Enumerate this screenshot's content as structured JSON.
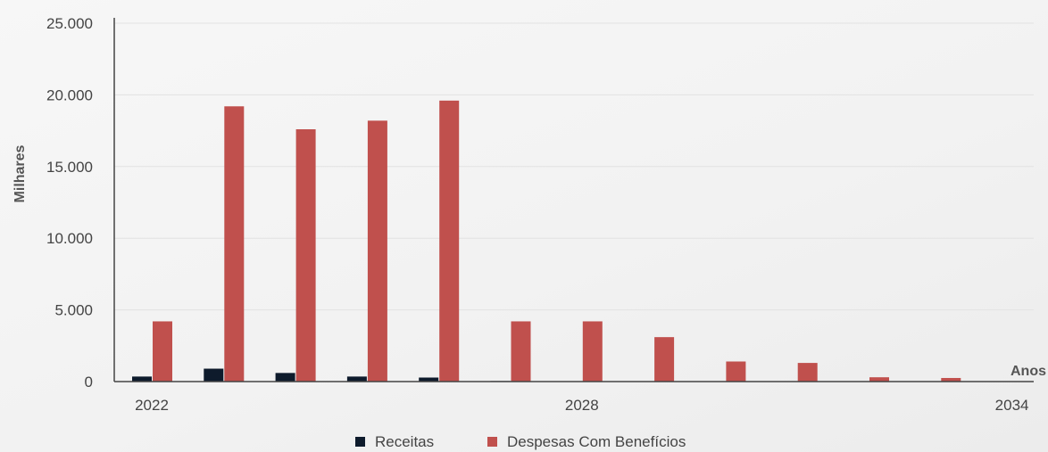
{
  "chart_data": {
    "type": "bar",
    "ylabel": "Milhares",
    "xlabel": "Anos",
    "ylim": [
      0,
      25000
    ],
    "yticks": [
      "0",
      "5.000",
      "10.000",
      "15.000",
      "20.000",
      "25.000"
    ],
    "ytick_values": [
      0,
      5000,
      10000,
      15000,
      20000,
      25000
    ],
    "categories": [
      "2022",
      "2023",
      "2024",
      "2025",
      "2026",
      "2027",
      "2028",
      "2029",
      "2030",
      "2031",
      "2032",
      "2033",
      "2034"
    ],
    "xtick_labels": [
      "2022",
      "2028",
      "2034"
    ],
    "series": [
      {
        "name": "Receitas",
        "color": "#0e1b2c",
        "values": [
          350,
          900,
          600,
          350,
          280,
          40,
          30,
          20,
          10,
          5,
          5,
          5,
          0
        ]
      },
      {
        "name": "Despesas Com Benefícios",
        "color": "#c0504d",
        "values": [
          4200,
          19200,
          17600,
          18200,
          19600,
          4200,
          4200,
          3100,
          1400,
          1300,
          300,
          250,
          0
        ]
      }
    ],
    "grid": true,
    "legend_position": "bottom-center"
  }
}
